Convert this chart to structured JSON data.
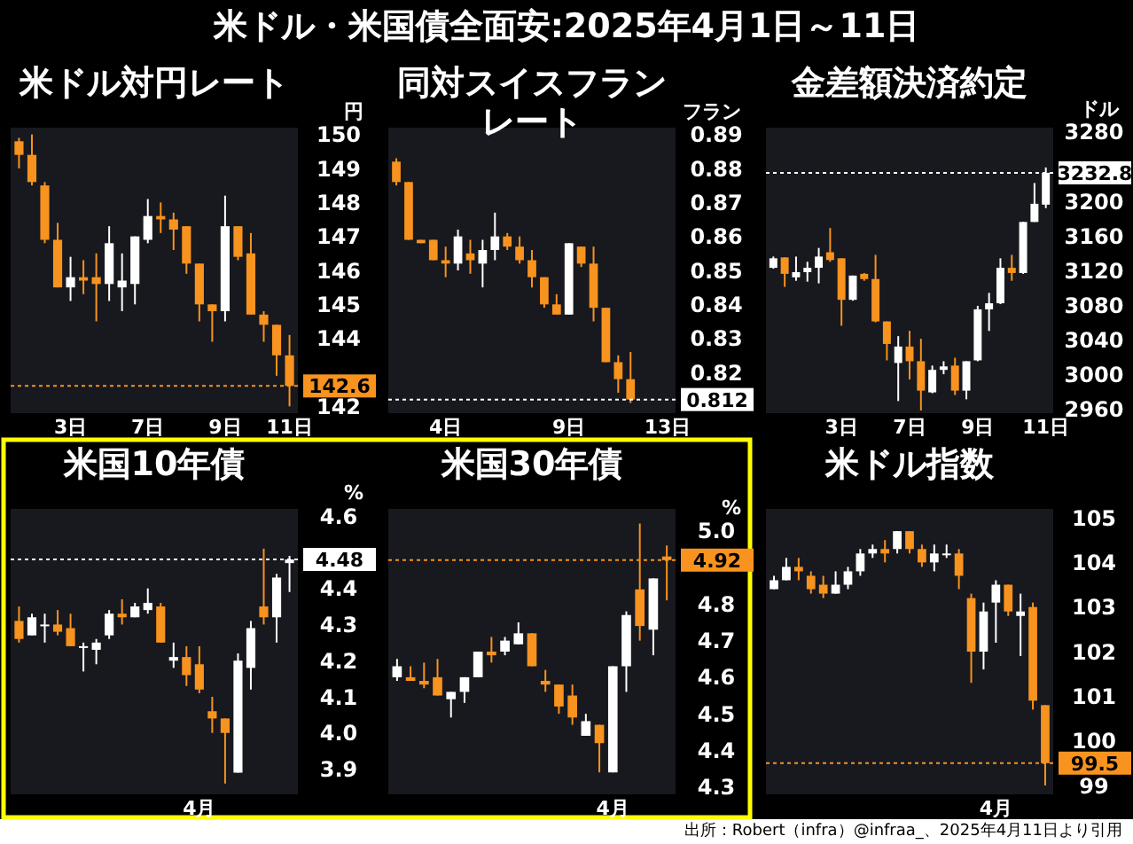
{
  "chart_data": [
    {
      "type": "candlestick",
      "title": "米ドル対円レート",
      "ylabel": "円",
      "annotations": [
        "米ドル・米国債全面安:2025年4月1日～11日"
      ],
      "categories": [
        null,
        null,
        null,
        null,
        "3日",
        null,
        null,
        null,
        null,
        null,
        "7日",
        null,
        null,
        null,
        null,
        null,
        "9日",
        null,
        null,
        null,
        null,
        "11日"
      ],
      "ohlc": [
        [
          149.8,
          149.9,
          149.0,
          149.4
        ],
        [
          149.4,
          150.0,
          148.5,
          148.6
        ],
        [
          148.5,
          148.6,
          146.8,
          146.9
        ],
        [
          146.9,
          147.4,
          145.5,
          145.5
        ],
        [
          145.5,
          146.4,
          145.1,
          145.8
        ],
        [
          145.8,
          146.3,
          145.3,
          145.7
        ],
        [
          145.8,
          146.5,
          144.5,
          145.6
        ],
        [
          145.6,
          147.3,
          145.1,
          146.8
        ],
        [
          145.5,
          146.5,
          144.8,
          145.7
        ],
        [
          145.6,
          147.0,
          145.0,
          147.0
        ],
        [
          146.9,
          148.1,
          146.8,
          147.6
        ],
        [
          147.6,
          148.0,
          147.1,
          147.5
        ],
        [
          147.5,
          147.7,
          146.6,
          147.2
        ],
        [
          147.3,
          147.3,
          145.9,
          146.2
        ],
        [
          146.2,
          146.2,
          144.5,
          145.0
        ],
        [
          145.0,
          145.0,
          143.9,
          144.8
        ],
        [
          144.8,
          148.2,
          144.5,
          147.3
        ],
        [
          147.3,
          147.3,
          146.3,
          146.4
        ],
        [
          146.5,
          147.1,
          144.7,
          144.7
        ],
        [
          144.7,
          144.8,
          143.9,
          144.4
        ],
        [
          144.4,
          144.4,
          142.9,
          143.5
        ],
        [
          143.5,
          144.1,
          142.0,
          142.6
        ]
      ],
      "colors": [
        "#f7931e",
        "#f7931e",
        "#f7931e",
        "#f7931e",
        "#ffffff",
        "#f7931e",
        "#f7931e",
        "#ffffff",
        "#ffffff",
        "#ffffff",
        "#ffffff",
        "#f7931e",
        "#f7931e",
        "#f7931e",
        "#f7931e",
        "#f7931e",
        "#ffffff",
        "#f7931e",
        "#f7931e",
        "#f7931e",
        "#f7931e",
        "#f7931e"
      ],
      "ylim": [
        141.8,
        150.2
      ],
      "yticks": [
        142,
        144,
        145,
        146,
        147,
        148,
        149,
        150
      ],
      "ref_lines": [
        {
          "axis": "y",
          "value": 142.6,
          "label": "142.6",
          "color": "#f7931e"
        }
      ]
    },
    {
      "type": "candlestick",
      "title": "同対スイスフランレート",
      "ylabel": "フラン",
      "categories": [
        null,
        null,
        null,
        null,
        "4日",
        null,
        null,
        null,
        null,
        null,
        null,
        null,
        null,
        null,
        "9日",
        null,
        null,
        null,
        null,
        null,
        null,
        null,
        "13日"
      ],
      "ohlc": [
        [
          0.882,
          0.883,
          0.875,
          0.876
        ],
        [
          0.876,
          0.876,
          0.859,
          0.859
        ],
        [
          0.859,
          0.859,
          0.858,
          0.858
        ],
        [
          0.859,
          0.859,
          0.853,
          0.853
        ],
        [
          0.853,
          0.857,
          0.848,
          0.852
        ],
        [
          0.852,
          0.862,
          0.85,
          0.86
        ],
        [
          0.855,
          0.859,
          0.849,
          0.853
        ],
        [
          0.852,
          0.859,
          0.845,
          0.856
        ],
        [
          0.856,
          0.867,
          0.853,
          0.86
        ],
        [
          0.86,
          0.861,
          0.856,
          0.857
        ],
        [
          0.857,
          0.86,
          0.852,
          0.853
        ],
        [
          0.853,
          0.856,
          0.845,
          0.848
        ],
        [
          0.848,
          0.848,
          0.839,
          0.84
        ],
        [
          0.84,
          0.843,
          0.837,
          0.837
        ],
        [
          0.837,
          0.858,
          0.837,
          0.858
        ],
        [
          0.857,
          0.857,
          0.851,
          0.852
        ],
        [
          0.852,
          0.857,
          0.835,
          0.839
        ],
        [
          0.839,
          0.839,
          0.823,
          0.823
        ],
        [
          0.823,
          0.825,
          0.814,
          0.818
        ],
        [
          0.818,
          0.826,
          0.811,
          0.812
        ],
        null,
        null,
        null
      ],
      "colors": [
        "#f7931e",
        "#f7931e",
        "#f7931e",
        "#f7931e",
        "#f7931e",
        "#ffffff",
        "#f7931e",
        "#ffffff",
        "#ffffff",
        "#f7931e",
        "#f7931e",
        "#f7931e",
        "#f7931e",
        "#f7931e",
        "#ffffff",
        "#f7931e",
        "#f7931e",
        "#f7931e",
        "#f7931e",
        "#f7931e",
        null,
        null,
        null
      ],
      "ylim": [
        0.808,
        0.892
      ],
      "yticks": [
        0.82,
        0.83,
        0.84,
        0.85,
        0.86,
        0.87,
        0.88,
        0.89
      ],
      "ref_lines": [
        {
          "axis": "y",
          "value": 0.812,
          "label": "0.812",
          "color": "#ffffff"
        }
      ]
    },
    {
      "type": "candlestick",
      "title": "金差額決済約定",
      "ylabel": "ドル",
      "categories": [
        null,
        null,
        null,
        null,
        null,
        null,
        "3日",
        null,
        null,
        null,
        null,
        null,
        "7日",
        null,
        null,
        null,
        null,
        null,
        "9日",
        null,
        null,
        null,
        null,
        null,
        "11日"
      ],
      "ohlc": [
        [
          3123,
          3136,
          3122,
          3134
        ],
        [
          3135,
          3135,
          3101,
          3116
        ],
        [
          3112,
          3136,
          3108,
          3118
        ],
        [
          3118,
          3130,
          3107,
          3123
        ],
        [
          3123,
          3146,
          3105,
          3136
        ],
        [
          3141,
          3169,
          3130,
          3132
        ],
        [
          3134,
          3134,
          3056,
          3086
        ],
        [
          3086,
          3114,
          3085,
          3114
        ],
        [
          3116,
          3117,
          3108,
          3110
        ],
        [
          3110,
          3138,
          3060,
          3061
        ],
        [
          3061,
          3061,
          3016,
          3035
        ],
        [
          3013,
          3044,
          2969,
          3032
        ],
        [
          3032,
          3050,
          2994,
          3015
        ],
        [
          3015,
          3041,
          2958,
          2981
        ],
        [
          2979,
          3010,
          2978,
          3005
        ],
        [
          3005,
          3015,
          3000,
          3009
        ],
        [
          3010,
          3019,
          2976,
          2981
        ],
        [
          2981,
          3015,
          2971,
          3015
        ],
        [
          3016,
          3079,
          3015,
          3075
        ],
        [
          3075,
          3094,
          3050,
          3082
        ],
        [
          3082,
          3134,
          3081,
          3123
        ],
        [
          3123,
          3138,
          3108,
          3117
        ],
        [
          3117,
          3176,
          3116,
          3176
        ],
        [
          3176,
          3221,
          3176,
          3197
        ],
        [
          3196,
          3239,
          3192,
          3232.8
        ]
      ],
      "colors": [
        "#ffffff",
        "#f7931e",
        "#ffffff",
        "#ffffff",
        "#ffffff",
        "#f7931e",
        "#f7931e",
        "#ffffff",
        "#f7931e",
        "#f7931e",
        "#f7931e",
        "#ffffff",
        "#f7931e",
        "#f7931e",
        "#ffffff",
        "#ffffff",
        "#f7931e",
        "#ffffff",
        "#ffffff",
        "#ffffff",
        "#ffffff",
        "#f7931e",
        "#ffffff",
        "#ffffff",
        "#ffffff"
      ],
      "ylim": [
        2955,
        3285
      ],
      "yticks": [
        2960,
        3000,
        3040,
        3080,
        3120,
        3160,
        3200,
        3280
      ],
      "ref_lines": [
        {
          "axis": "y",
          "value": 3232.8,
          "label": "3232.8",
          "color": "#ffffff"
        }
      ]
    },
    {
      "type": "candlestick",
      "title": "米国10年債",
      "ylabel": "%",
      "categories": [
        null,
        null,
        null,
        null,
        null,
        null,
        null,
        null,
        null,
        null,
        null,
        null,
        null,
        null,
        "4月",
        null,
        null,
        null,
        null,
        null,
        null,
        null
      ],
      "ohlc": [
        [
          4.31,
          4.35,
          4.25,
          4.26
        ],
        [
          4.27,
          4.33,
          4.27,
          4.32
        ],
        [
          4.3,
          4.33,
          4.25,
          4.3
        ],
        [
          4.3,
          4.34,
          4.27,
          4.28
        ],
        [
          4.29,
          4.33,
          4.24,
          4.24
        ],
        [
          4.24,
          4.25,
          4.17,
          4.24
        ],
        [
          4.23,
          4.26,
          4.19,
          4.25
        ],
        [
          4.27,
          4.34,
          4.26,
          4.33
        ],
        [
          4.33,
          4.37,
          4.3,
          4.32
        ],
        [
          4.32,
          4.36,
          4.32,
          4.35
        ],
        [
          4.34,
          4.4,
          4.33,
          4.36
        ],
        [
          4.35,
          4.36,
          4.25,
          4.25
        ],
        [
          4.2,
          4.25,
          4.18,
          4.21
        ],
        [
          4.21,
          4.24,
          4.13,
          4.16
        ],
        [
          4.19,
          4.24,
          4.11,
          4.12
        ],
        [
          4.06,
          4.1,
          4.0,
          4.04
        ],
        [
          4.04,
          4.04,
          3.86,
          4.0
        ],
        [
          3.89,
          4.22,
          3.89,
          4.2
        ],
        [
          4.18,
          4.31,
          4.12,
          4.29
        ],
        [
          4.35,
          4.51,
          4.3,
          4.32
        ],
        [
          4.32,
          4.44,
          4.25,
          4.43
        ],
        [
          4.47,
          4.49,
          4.39,
          4.48
        ]
      ],
      "colors": [
        "#f7931e",
        "#ffffff",
        "#ffffff",
        "#f7931e",
        "#f7931e",
        "#ffffff",
        "#ffffff",
        "#ffffff",
        "#f7931e",
        "#ffffff",
        "#ffffff",
        "#f7931e",
        "#ffffff",
        "#f7931e",
        "#f7931e",
        "#f7931e",
        "#f7931e",
        "#ffffff",
        "#ffffff",
        "#f7931e",
        "#ffffff",
        "#ffffff"
      ],
      "ylim": [
        3.83,
        4.62
      ],
      "yticks": [
        3.9,
        {
          "value": 4.0,
          "label": "4.0"
        },
        4.1,
        4.2,
        4.3,
        4.4,
        4.6
      ],
      "ref_lines": [
        {
          "axis": "y",
          "value": 4.48,
          "label": "4.48",
          "color": "#ffffff"
        }
      ]
    },
    {
      "type": "candlestick",
      "title": "米国30年債",
      "ylabel": "%",
      "categories": [
        null,
        null,
        null,
        null,
        null,
        null,
        null,
        null,
        null,
        null,
        null,
        null,
        null,
        null,
        null,
        null,
        "4月",
        null,
        null,
        null,
        null
      ],
      "ohlc": [
        [
          4.6,
          4.65,
          4.59,
          4.63
        ],
        [
          4.6,
          4.63,
          4.59,
          4.59
        ],
        [
          4.59,
          4.64,
          4.57,
          4.58
        ],
        [
          4.6,
          4.65,
          4.55,
          4.55
        ],
        [
          4.54,
          4.56,
          4.49,
          4.56
        ],
        [
          4.56,
          4.6,
          4.53,
          4.6
        ],
        [
          4.6,
          4.67,
          4.6,
          4.67
        ],
        [
          4.67,
          4.71,
          4.64,
          4.66
        ],
        [
          4.67,
          4.71,
          4.66,
          4.7
        ],
        [
          4.69,
          4.75,
          4.69,
          4.72
        ],
        [
          4.72,
          4.72,
          4.63,
          4.63
        ],
        [
          4.59,
          4.62,
          4.56,
          4.58
        ],
        [
          4.58,
          4.58,
          4.5,
          4.52
        ],
        [
          4.55,
          4.58,
          4.47,
          4.49
        ],
        [
          4.44,
          4.5,
          4.44,
          4.48
        ],
        [
          4.47,
          4.47,
          4.34,
          4.42
        ],
        [
          4.34,
          4.63,
          4.34,
          4.63
        ],
        [
          4.63,
          4.78,
          4.56,
          4.77
        ],
        [
          4.84,
          5.02,
          4.7,
          4.74
        ],
        [
          4.73,
          4.87,
          4.66,
          4.87
        ],
        [
          4.93,
          4.96,
          4.81,
          4.92
        ]
      ],
      "colors": [
        "#ffffff",
        "#f7931e",
        "#f7931e",
        "#f7931e",
        "#ffffff",
        "#ffffff",
        "#ffffff",
        "#f7931e",
        "#ffffff",
        "#ffffff",
        "#f7931e",
        "#f7931e",
        "#f7931e",
        "#f7931e",
        "#ffffff",
        "#f7931e",
        "#ffffff",
        "#ffffff",
        "#f7931e",
        "#ffffff",
        "#f7931e"
      ],
      "ylim": [
        4.28,
        5.06
      ],
      "yticks": [
        4.3,
        4.4,
        4.5,
        4.6,
        4.7,
        4.8,
        {
          "value": 5.0,
          "label": "5.0"
        }
      ],
      "ref_lines": [
        {
          "axis": "y",
          "value": 4.92,
          "label": "4.92",
          "color": "#f7931e"
        }
      ]
    },
    {
      "type": "candlestick",
      "title": "米ドル指数",
      "annotations": [
        "出所：Robert（infra）@infraa_、2025年4月11日より引用"
      ],
      "categories": [
        null,
        null,
        null,
        null,
        null,
        null,
        null,
        null,
        null,
        null,
        null,
        null,
        null,
        null,
        null,
        null,
        null,
        null,
        "4月",
        null,
        null,
        null,
        null
      ],
      "ohlc": [
        [
          103.4,
          103.7,
          103.4,
          103.6
        ],
        [
          103.6,
          104.1,
          103.6,
          103.9
        ],
        [
          103.9,
          104.1,
          103.6,
          103.8
        ],
        [
          103.7,
          103.8,
          103.3,
          103.4
        ],
        [
          103.5,
          103.7,
          103.2,
          103.3
        ],
        [
          103.3,
          103.8,
          103.3,
          103.5
        ],
        [
          103.5,
          103.9,
          103.4,
          103.8
        ],
        [
          103.8,
          104.3,
          103.7,
          104.2
        ],
        [
          104.2,
          104.4,
          104.1,
          104.3
        ],
        [
          104.3,
          104.5,
          104.0,
          104.2
        ],
        [
          104.3,
          104.7,
          104.2,
          104.7
        ],
        [
          104.7,
          104.7,
          104.2,
          104.3
        ],
        [
          104.3,
          104.4,
          103.9,
          104.0
        ],
        [
          104.0,
          104.4,
          103.8,
          104.2
        ],
        [
          104.2,
          104.4,
          104.1,
          104.2
        ],
        [
          104.2,
          104.3,
          103.4,
          103.7
        ],
        [
          103.2,
          103.3,
          101.3,
          102.0
        ],
        [
          102.0,
          103.1,
          101.6,
          102.9
        ],
        [
          103.1,
          103.6,
          102.2,
          103.5
        ],
        [
          103.5,
          103.5,
          102.8,
          102.9
        ],
        [
          102.8,
          103.3,
          101.9,
          102.9
        ],
        [
          103.0,
          103.1,
          100.7,
          100.9
        ],
        [
          100.8,
          100.8,
          99.0,
          99.5
        ]
      ],
      "colors": [
        "#ffffff",
        "#ffffff",
        "#f7931e",
        "#f7931e",
        "#f7931e",
        "#ffffff",
        "#ffffff",
        "#ffffff",
        "#ffffff",
        "#f7931e",
        "#ffffff",
        "#f7931e",
        "#f7931e",
        "#ffffff",
        "#ffffff",
        "#f7931e",
        "#f7931e",
        "#ffffff",
        "#ffffff",
        "#f7931e",
        "#ffffff",
        "#f7931e",
        "#f7931e"
      ],
      "ylim": [
        98.8,
        105.2
      ],
      "yticks": [
        99,
        100,
        101,
        102,
        103,
        104,
        105
      ],
      "ref_lines": [
        {
          "axis": "y",
          "value": 99.5,
          "label": "99.5",
          "color": "#f7931e"
        }
      ]
    }
  ]
}
